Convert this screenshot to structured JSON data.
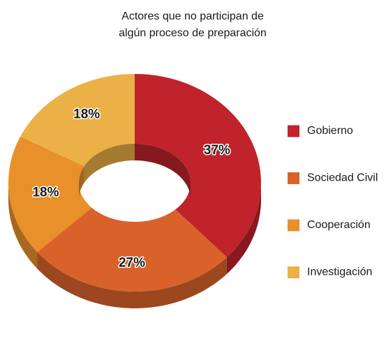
{
  "chart_data": {
    "type": "donut3d",
    "title": [
      "Actores que no participan de",
      "algún proceso de preparación"
    ],
    "categories": [
      "Gobierno",
      "Sociedad Civil",
      "Cooperación",
      "Investigación"
    ],
    "values": [
      37,
      27,
      18,
      18
    ],
    "value_labels": [
      "37%",
      "27%",
      "18%",
      "18%"
    ],
    "colors": [
      "#c0232b",
      "#d9622b",
      "#e8902a",
      "#ebb046"
    ],
    "legend": "right"
  }
}
